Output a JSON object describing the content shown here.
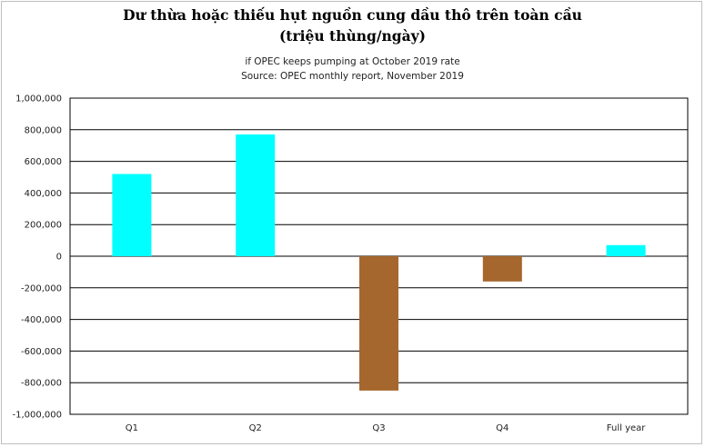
{
  "chart_data": {
    "type": "bar",
    "title_line1": "Dư thừa hoặc thiếu hụt nguồn cung dầu thô trên toàn cầu",
    "title_line2": "(triệu thùng/ngày)",
    "subtitle_line1": "if OPEC keeps pumping at October 2019 rate",
    "subtitle_line2": "Source: OPEC monthly report, November  2019",
    "xlabel": "",
    "ylabel": "",
    "categories": [
      "Q1",
      "Q2",
      "Q3",
      "Q4",
      "Full year"
    ],
    "values": [
      520000,
      770000,
      -850000,
      -160000,
      70000
    ],
    "ylim": [
      -1000000,
      1000000
    ],
    "yticks": [
      1000000,
      800000,
      600000,
      400000,
      200000,
      0,
      -200000,
      -400000,
      -600000,
      -800000,
      -1000000
    ],
    "ytick_labels": [
      "1,000,000",
      "800,000",
      "600,000",
      "400,000",
      "200,000",
      "0",
      "-200,000",
      "-400,000",
      "-600,000",
      "-800,000",
      "-1,000,000"
    ],
    "grid": true,
    "colors": {
      "positive": "#00ffff",
      "negative": "#a5672d",
      "grid": "#000000"
    }
  }
}
